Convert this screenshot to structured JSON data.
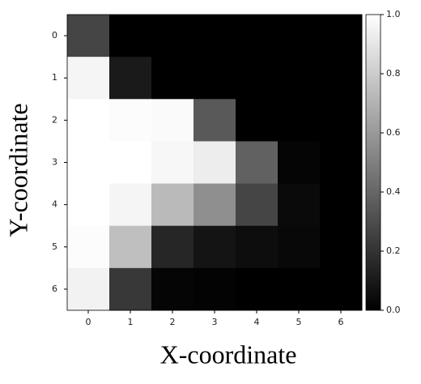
{
  "chart_data": {
    "type": "heatmap",
    "x_label": "X-coordinate",
    "y_label": "Y-coordinate",
    "x": [
      0,
      1,
      2,
      3,
      4,
      5,
      6
    ],
    "y": [
      0,
      1,
      2,
      3,
      4,
      5,
      6
    ],
    "values": [
      [
        0.27,
        0,
        0,
        0,
        0,
        0,
        0
      ],
      [
        0.96,
        0.1,
        0,
        0,
        0,
        0,
        0
      ],
      [
        1.0,
        0.99,
        0.98,
        0.35,
        0,
        0,
        0
      ],
      [
        1.0,
        1.0,
        0.97,
        0.93,
        0.38,
        0.02,
        0
      ],
      [
        1.0,
        0.96,
        0.73,
        0.56,
        0.27,
        0.04,
        0
      ],
      [
        0.99,
        0.75,
        0.15,
        0.08,
        0.05,
        0.03,
        0
      ],
      [
        0.95,
        0.22,
        0.02,
        0.01,
        0,
        0,
        0
      ]
    ],
    "colormap": "gray",
    "clim": [
      0,
      1
    ],
    "cticks": [
      {
        "value": 0,
        "label": "0.0"
      },
      0.2,
      0.4,
      0.6,
      0.8,
      {
        "value": 1,
        "label": "1.0"
      }
    ]
  }
}
